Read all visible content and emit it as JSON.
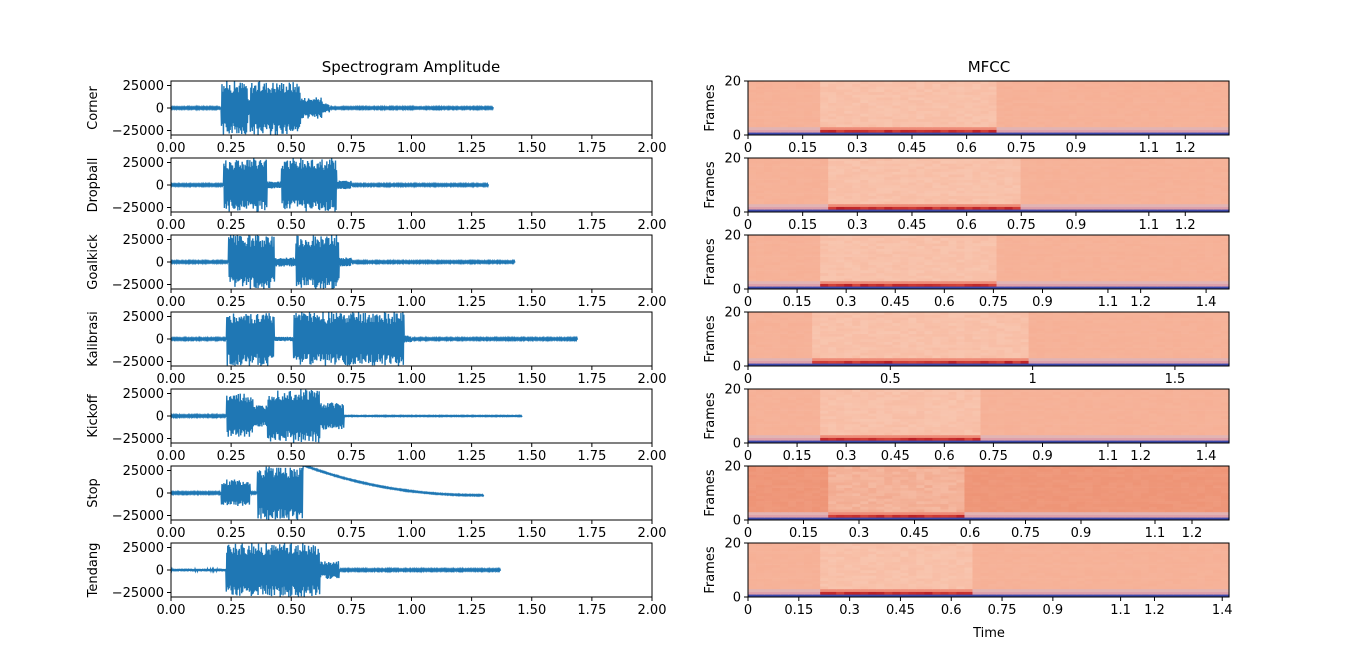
{
  "figure": {
    "waveform_title": "Spectrogram Amplitude",
    "mfcc_title": "MFCC"
  },
  "chart_data": [
    {
      "type": "line",
      "title": "Spectrogram Amplitude",
      "xlim": [
        0,
        2
      ],
      "ylim": [
        -30000,
        30000
      ],
      "xticks": [
        "0.00",
        "0.25",
        "0.50",
        "0.75",
        "1.00",
        "1.25",
        "1.50",
        "1.75",
        "2.00"
      ],
      "yticks": [
        "25000",
        "0",
        "−25000"
      ],
      "line_color": "#1f77b4",
      "panels": [
        {
          "label": "Corner",
          "duration": 1.34,
          "segments": [
            [
              0.0,
              0.21,
              1000
            ],
            [
              0.21,
              0.32,
              30000
            ],
            [
              0.32,
              0.33,
              10000
            ],
            [
              0.33,
              0.54,
              30000
            ],
            [
              0.54,
              0.63,
              12000
            ],
            [
              0.63,
              0.66,
              5000
            ],
            [
              0.66,
              1.34,
              1000
            ]
          ]
        },
        {
          "label": "Dropball",
          "duration": 1.32,
          "segments": [
            [
              0.0,
              0.22,
              1000
            ],
            [
              0.22,
              0.4,
              30000
            ],
            [
              0.4,
              0.46,
              4000
            ],
            [
              0.46,
              0.69,
              30000
            ],
            [
              0.69,
              0.75,
              5000
            ],
            [
              0.75,
              1.32,
              1000
            ]
          ]
        },
        {
          "label": "Goalkick",
          "duration": 1.43,
          "segments": [
            [
              0.0,
              0.24,
              1000
            ],
            [
              0.24,
              0.43,
              30000
            ],
            [
              0.43,
              0.52,
              5000
            ],
            [
              0.52,
              0.7,
              30000
            ],
            [
              0.7,
              0.75,
              5000
            ],
            [
              0.75,
              1.43,
              1000
            ]
          ]
        },
        {
          "label": "Kalibrasi",
          "duration": 1.69,
          "segments": [
            [
              0.0,
              0.23,
              1000
            ],
            [
              0.23,
              0.43,
              30000
            ],
            [
              0.43,
              0.51,
              2500
            ],
            [
              0.51,
              0.97,
              30000
            ],
            [
              0.97,
              1.0,
              4000
            ],
            [
              1.0,
              1.69,
              1000
            ]
          ]
        },
        {
          "label": "Kickoff",
          "duration": 1.46,
          "segments": [
            [
              0.0,
              0.23,
              1000
            ],
            [
              0.23,
              0.34,
              25000
            ],
            [
              0.34,
              0.4,
              12000
            ],
            [
              0.4,
              0.62,
              30000
            ],
            [
              0.62,
              0.72,
              15000
            ],
            [
              0.72,
              1.46,
              500
            ]
          ]
        },
        {
          "label": "Stop",
          "duration": 1.3,
          "segments": [
            [
              0.0,
              0.21,
              1000
            ],
            [
              0.21,
              0.33,
              15000
            ],
            [
              0.33,
              0.36,
              1000
            ],
            [
              0.36,
              0.55,
              30000
            ]
          ],
          "decay": {
            "from": 0.55,
            "to": 1.3,
            "start": 31000,
            "end": -2500
          }
        },
        {
          "label": "Tendang",
          "duration": 1.37,
          "segments": [
            [
              0.0,
              0.23,
              1500
            ],
            [
              0.23,
              0.62,
              30000
            ],
            [
              0.62,
              0.7,
              10000
            ],
            [
              0.7,
              1.37,
              1000
            ]
          ]
        }
      ]
    },
    {
      "type": "heatmap",
      "title": "MFCC",
      "xlabel": "Time",
      "ylabel": "Frames",
      "ylim": [
        0,
        20
      ],
      "yticks": [
        "0",
        "20"
      ],
      "colormap": "Reds",
      "panels": [
        {
          "xmax": 1.32,
          "xticks": [
            0,
            0.15,
            0.3,
            0.45,
            0.6,
            0.75,
            0.9,
            1.1,
            1.2
          ],
          "xtick_labels": [
            "0",
            "0.15",
            "0.3",
            "0.45",
            "0.6",
            "0.75",
            "0.9",
            "1.1",
            "1.2"
          ],
          "active": [
            [
              0.2,
              0.68
            ]
          ]
        },
        {
          "xmax": 1.32,
          "xticks": [
            0,
            0.15,
            0.3,
            0.45,
            0.6,
            0.75,
            0.9,
            1.1,
            1.2
          ],
          "xtick_labels": [
            "0",
            "0.15",
            "0.3",
            "0.45",
            "0.6",
            "0.75",
            "0.9",
            "1.1",
            "1.2"
          ],
          "active": [
            [
              0.22,
              0.75
            ]
          ]
        },
        {
          "xmax": 1.47,
          "xticks": [
            0,
            0.15,
            0.3,
            0.45,
            0.6,
            0.75,
            0.9,
            1.1,
            1.2,
            1.4
          ],
          "xtick_labels": [
            "0",
            "0.15",
            "0.3",
            "0.45",
            "0.6",
            "0.75",
            "0.9",
            "1.1",
            "1.2",
            "1.4"
          ],
          "active": [
            [
              0.22,
              0.75
            ]
          ]
        },
        {
          "xmax": 1.69,
          "xticks": [
            0,
            0.5,
            1,
            1.5
          ],
          "xtick_labels": [
            "0",
            "0.5",
            "1",
            "1.5"
          ],
          "active": [
            [
              0.22,
              0.98
            ]
          ]
        },
        {
          "xmax": 1.47,
          "xticks": [
            0,
            0.15,
            0.3,
            0.45,
            0.6,
            0.75,
            0.9,
            1.1,
            1.2,
            1.4
          ],
          "xtick_labels": [
            "0",
            "0.15",
            "0.3",
            "0.45",
            "0.6",
            "0.75",
            "0.9",
            "1.1",
            "1.2",
            "1.4"
          ],
          "active": [
            [
              0.22,
              0.72
            ]
          ]
        },
        {
          "xmax": 1.3,
          "xticks": [
            0,
            0.15,
            0.3,
            0.45,
            0.6,
            0.75,
            0.9,
            1.1,
            1.2
          ],
          "xtick_labels": [
            "0",
            "0.15",
            "0.3",
            "0.45",
            "0.6",
            "0.75",
            "0.9",
            "1.1",
            "1.2"
          ],
          "active": [
            [
              0.22,
              0.58
            ]
          ]
        },
        {
          "xmax": 1.42,
          "xticks": [
            0,
            0.15,
            0.3,
            0.45,
            0.6,
            0.75,
            0.9,
            1.1,
            1.2,
            1.4
          ],
          "xtick_labels": [
            "0",
            "0.15",
            "0.3",
            "0.45",
            "0.6",
            "0.75",
            "0.9",
            "1.1",
            "1.2",
            "1.4"
          ],
          "active": [
            [
              0.22,
              0.66
            ]
          ]
        }
      ]
    }
  ]
}
